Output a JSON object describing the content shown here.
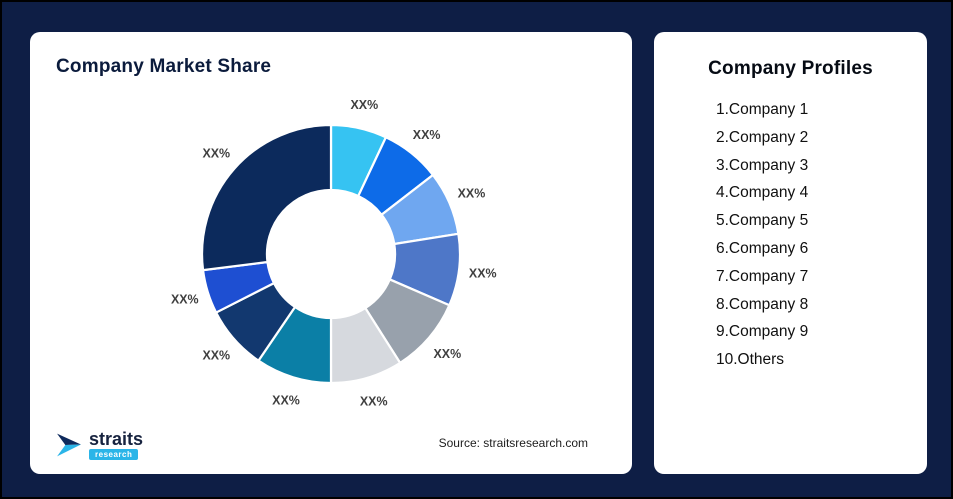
{
  "page": {
    "background": "#0E1E45",
    "card_background": "#FFFFFF"
  },
  "market_share_card": {
    "title": "Company Market Share",
    "source": "Source: straitsresearch.com",
    "logo": {
      "brand": "straits",
      "sub": "research",
      "accent_color": "#2BB5E8",
      "navy_color": "#0E2A5C"
    }
  },
  "profiles_card": {
    "title": "Company Profiles",
    "items": [
      "1.Company 1",
      "2.Company 2",
      "3.Company 3",
      "4.Company 4",
      "5.Company 5",
      "6.Company 6",
      "7.Company 7",
      "8.Company 8",
      "9.Company 9",
      "10.Others"
    ]
  },
  "chart_data": {
    "type": "pie",
    "subtype": "donut",
    "title": "Company Market Share",
    "start_angle_deg": 0,
    "direction": "clockwise",
    "inner_radius_ratio": 0.5,
    "note": "All slice data labels are masked as XX% in the graphic; values below are estimated shares from arc angles",
    "segments": [
      {
        "name": "segment-1",
        "label": "XX%",
        "value": 7,
        "color": "#36C3F2"
      },
      {
        "name": "segment-2",
        "label": "XX%",
        "value": 7.5,
        "color": "#0D6BE8"
      },
      {
        "name": "segment-3",
        "label": "XX%",
        "value": 8,
        "color": "#6FA7F0"
      },
      {
        "name": "segment-4",
        "label": "XX%",
        "value": 9,
        "color": "#4E77C8"
      },
      {
        "name": "segment-5",
        "label": "XX%",
        "value": 9.5,
        "color": "#98A1AC"
      },
      {
        "name": "segment-6",
        "label": "XX%",
        "value": 9,
        "color": "#D6D9DE"
      },
      {
        "name": "segment-7",
        "label": "XX%",
        "value": 9.5,
        "color": "#0B7FA6"
      },
      {
        "name": "segment-8",
        "label": "XX%",
        "value": 8,
        "color": "#12386F"
      },
      {
        "name": "segment-9",
        "label": "XX%",
        "value": 5.5,
        "color": "#1E4FD2"
      },
      {
        "name": "segment-10",
        "label": "XX%",
        "value": 27,
        "color": "#0C2A5C"
      }
    ]
  }
}
